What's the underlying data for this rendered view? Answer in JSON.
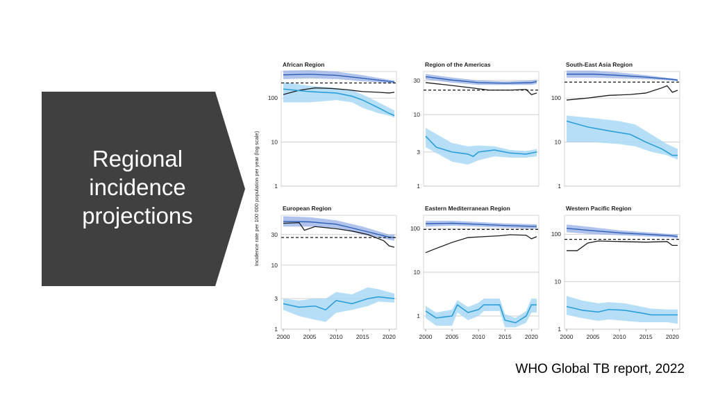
{
  "slide": {
    "title_lines": [
      "Regional",
      "incidence",
      "projections"
    ],
    "source": "WHO Global TB report, 2022"
  },
  "colors": {
    "panel": "#404040",
    "blue_line": "#2b9fd9",
    "light_band": "#a9d8f5",
    "dark_band": "#8da9e6",
    "dark_line": "#2f5fb3",
    "black_line": "#1a1a1a",
    "grid": "#bfbfbf",
    "frame": "#cccccc"
  },
  "chart_data": {
    "type": "line",
    "ylabel": "Incidence rate per 100 000 population per year (log scale)",
    "x_ticks": [
      2000,
      2005,
      2010,
      2015,
      2020
    ],
    "panels": [
      {
        "title": "African Region",
        "ylim": [
          1,
          400
        ],
        "y_ticks": [
          1,
          10,
          100
        ],
        "reference_line": 220,
        "upper_band": [
          [
            2000,
            420,
            270
          ],
          [
            2005,
            430,
            280
          ],
          [
            2010,
            400,
            270
          ],
          [
            2015,
            330,
            240
          ],
          [
            2020,
            260,
            220
          ],
          [
            2021,
            250,
            215
          ]
        ],
        "black_line": [
          [
            2000,
            120
          ],
          [
            2003,
            150
          ],
          [
            2006,
            170
          ],
          [
            2009,
            165
          ],
          [
            2012,
            155
          ],
          [
            2015,
            140
          ],
          [
            2018,
            135
          ],
          [
            2020,
            130
          ],
          [
            2021,
            135
          ]
        ],
        "blue_line": [
          [
            2000,
            160
          ],
          [
            2005,
            140
          ],
          [
            2010,
            130
          ],
          [
            2013,
            110
          ],
          [
            2015,
            90
          ],
          [
            2018,
            60
          ],
          [
            2020,
            45
          ],
          [
            2021,
            40
          ]
        ],
        "blue_band": [
          [
            2000,
            230,
            80
          ],
          [
            2005,
            190,
            80
          ],
          [
            2010,
            170,
            90
          ],
          [
            2013,
            150,
            80
          ],
          [
            2015,
            120,
            60
          ],
          [
            2018,
            80,
            45
          ],
          [
            2020,
            60,
            40
          ],
          [
            2021,
            52,
            36
          ]
        ]
      },
      {
        "title": "Region of the Americas",
        "ylim": [
          1,
          40
        ],
        "y_ticks": [
          1,
          3,
          10,
          30
        ],
        "reference_line": 22,
        "upper_band": [
          [
            2000,
            37,
            31
          ],
          [
            2005,
            33,
            28
          ],
          [
            2010,
            30,
            26
          ],
          [
            2015,
            29,
            26
          ],
          [
            2020,
            30,
            26
          ],
          [
            2021,
            31,
            27
          ]
        ],
        "black_line": [
          [
            2000,
            28
          ],
          [
            2004,
            26
          ],
          [
            2008,
            24
          ],
          [
            2012,
            22
          ],
          [
            2016,
            22
          ],
          [
            2019,
            22.5
          ],
          [
            2020,
            19
          ],
          [
            2021,
            20
          ]
        ],
        "blue_line": [
          [
            2000,
            5
          ],
          [
            2002,
            3.5
          ],
          [
            2005,
            3
          ],
          [
            2008,
            2.8
          ],
          [
            2009,
            2.6
          ],
          [
            2010,
            3
          ],
          [
            2013,
            3.2
          ],
          [
            2016,
            2.9
          ],
          [
            2019,
            2.8
          ],
          [
            2020,
            2.9
          ],
          [
            2021,
            3
          ]
        ],
        "blue_band": [
          [
            2000,
            6.5,
            3.5
          ],
          [
            2005,
            4,
            2.2
          ],
          [
            2008,
            3.6,
            2
          ],
          [
            2010,
            3.7,
            2.3
          ],
          [
            2013,
            3.6,
            2.6
          ],
          [
            2016,
            3.2,
            2.5
          ],
          [
            2019,
            3.1,
            2.5
          ],
          [
            2021,
            3.3,
            2.6
          ]
        ]
      },
      {
        "title": "South-East Asia Region",
        "ylim": [
          1,
          400
        ],
        "y_ticks": [
          1,
          10,
          100
        ],
        "reference_line": 230,
        "upper_band": [
          [
            2000,
            420,
            290
          ],
          [
            2005,
            420,
            290
          ],
          [
            2010,
            380,
            280
          ],
          [
            2015,
            330,
            270
          ],
          [
            2020,
            280,
            250
          ],
          [
            2021,
            270,
            240
          ]
        ],
        "black_line": [
          [
            2000,
            90
          ],
          [
            2004,
            100
          ],
          [
            2008,
            115
          ],
          [
            2012,
            120
          ],
          [
            2015,
            130
          ],
          [
            2018,
            170
          ],
          [
            2019,
            190
          ],
          [
            2020,
            135
          ],
          [
            2021,
            150
          ]
        ],
        "blue_line": [
          [
            2000,
            30
          ],
          [
            2004,
            22
          ],
          [
            2008,
            18
          ],
          [
            2012,
            15
          ],
          [
            2015,
            10
          ],
          [
            2018,
            7
          ],
          [
            2020,
            5
          ],
          [
            2021,
            5
          ]
        ],
        "blue_band": [
          [
            2000,
            40,
            10
          ],
          [
            2005,
            35,
            10
          ],
          [
            2010,
            30,
            9
          ],
          [
            2013,
            25,
            8
          ],
          [
            2016,
            15,
            6
          ],
          [
            2019,
            9,
            5
          ],
          [
            2021,
            7,
            4
          ]
        ]
      },
      {
        "title": "European Region",
        "ylim": [
          1,
          60
        ],
        "y_ticks": [
          1,
          3,
          10,
          30
        ],
        "reference_line": 27,
        "upper_band": [
          [
            2000,
            58,
            40
          ],
          [
            2005,
            56,
            40
          ],
          [
            2010,
            50,
            38
          ],
          [
            2015,
            40,
            30
          ],
          [
            2020,
            30,
            25
          ],
          [
            2021,
            30,
            24
          ]
        ],
        "black_line": [
          [
            2000,
            45
          ],
          [
            2003,
            46
          ],
          [
            2004,
            35
          ],
          [
            2006,
            40
          ],
          [
            2010,
            37
          ],
          [
            2013,
            34
          ],
          [
            2016,
            30
          ],
          [
            2019,
            24
          ],
          [
            2020,
            20
          ],
          [
            2021,
            19
          ]
        ],
        "blue_line": [
          [
            2000,
            2.5
          ],
          [
            2003,
            2.2
          ],
          [
            2006,
            2.3
          ],
          [
            2008,
            2
          ],
          [
            2010,
            2.8
          ],
          [
            2013,
            2.5
          ],
          [
            2016,
            3
          ],
          [
            2018,
            3.2
          ],
          [
            2021,
            3
          ]
        ],
        "blue_band": [
          [
            2000,
            3,
            2
          ],
          [
            2003,
            2.8,
            1.6
          ],
          [
            2006,
            3,
            1.4
          ],
          [
            2008,
            3,
            1.3
          ],
          [
            2010,
            3.8,
            1.8
          ],
          [
            2013,
            3.5,
            2
          ],
          [
            2016,
            4.5,
            2.3
          ],
          [
            2018,
            4.2,
            2.7
          ],
          [
            2021,
            3.6,
            2.6
          ]
        ]
      },
      {
        "title": "Eastern Mediterranean Region",
        "ylim": [
          0.5,
          200
        ],
        "y_ticks": [
          1,
          10,
          100
        ],
        "reference_line": 95,
        "upper_band": [
          [
            2000,
            150,
            110
          ],
          [
            2005,
            150,
            115
          ],
          [
            2010,
            140,
            110
          ],
          [
            2015,
            130,
            105
          ],
          [
            2020,
            125,
            100
          ],
          [
            2021,
            125,
            100
          ]
        ],
        "black_line": [
          [
            2000,
            28
          ],
          [
            2002,
            35
          ],
          [
            2005,
            48
          ],
          [
            2008,
            62
          ],
          [
            2011,
            65
          ],
          [
            2014,
            68
          ],
          [
            2016,
            72
          ],
          [
            2019,
            70
          ],
          [
            2020,
            58
          ],
          [
            2021,
            65
          ]
        ],
        "blue_line": [
          [
            2000,
            1.3
          ],
          [
            2002,
            0.9
          ],
          [
            2005,
            1
          ],
          [
            2006,
            1.8
          ],
          [
            2008,
            1.2
          ],
          [
            2010,
            1.4
          ],
          [
            2011,
            1.8
          ],
          [
            2014,
            1.8
          ],
          [
            2015,
            0.8
          ],
          [
            2017,
            0.7
          ],
          [
            2019,
            1
          ],
          [
            2020,
            1.8
          ],
          [
            2021,
            1.8
          ]
        ],
        "blue_band": [
          [
            2000,
            1.7,
            0.9
          ],
          [
            2002,
            1.2,
            0.6
          ],
          [
            2005,
            1.4,
            0.6
          ],
          [
            2006,
            2.3,
            1.2
          ],
          [
            2008,
            1.6,
            0.8
          ],
          [
            2010,
            2,
            1
          ],
          [
            2011,
            2.5,
            1.3
          ],
          [
            2014,
            2.5,
            1.3
          ],
          [
            2015,
            1.1,
            0.55
          ],
          [
            2017,
            0.9,
            0.55
          ],
          [
            2019,
            1.3,
            0.7
          ],
          [
            2020,
            2.5,
            1.2
          ],
          [
            2021,
            2.5,
            1.2
          ]
        ]
      },
      {
        "title": "Western Pacific Region",
        "ylim": [
          1,
          250
        ],
        "y_ticks": [
          1,
          10,
          100
        ],
        "reference_line": 78,
        "upper_band": [
          [
            2000,
            160,
            110
          ],
          [
            2005,
            140,
            100
          ],
          [
            2010,
            120,
            95
          ],
          [
            2015,
            110,
            90
          ],
          [
            2020,
            100,
            85
          ],
          [
            2021,
            100,
            80
          ]
        ],
        "black_line": [
          [
            2000,
            45
          ],
          [
            2002,
            45
          ],
          [
            2004,
            65
          ],
          [
            2006,
            72
          ],
          [
            2010,
            70
          ],
          [
            2015,
            68
          ],
          [
            2019,
            70
          ],
          [
            2020,
            58
          ],
          [
            2021,
            58
          ]
        ],
        "blue_line": [
          [
            2000,
            3
          ],
          [
            2003,
            2.5
          ],
          [
            2006,
            2.3
          ],
          [
            2008,
            2.6
          ],
          [
            2011,
            2.5
          ],
          [
            2014,
            2.2
          ],
          [
            2016,
            2
          ],
          [
            2019,
            2
          ],
          [
            2021,
            2
          ]
        ],
        "blue_band": [
          [
            2000,
            5,
            2
          ],
          [
            2003,
            4,
            1.7
          ],
          [
            2006,
            3.5,
            1.5
          ],
          [
            2008,
            3.7,
            1.6
          ],
          [
            2011,
            3.5,
            1.5
          ],
          [
            2014,
            3,
            1.4
          ],
          [
            2016,
            2.7,
            1.4
          ],
          [
            2019,
            2.6,
            1.4
          ],
          [
            2021,
            2.6,
            1.3
          ]
        ]
      }
    ]
  }
}
